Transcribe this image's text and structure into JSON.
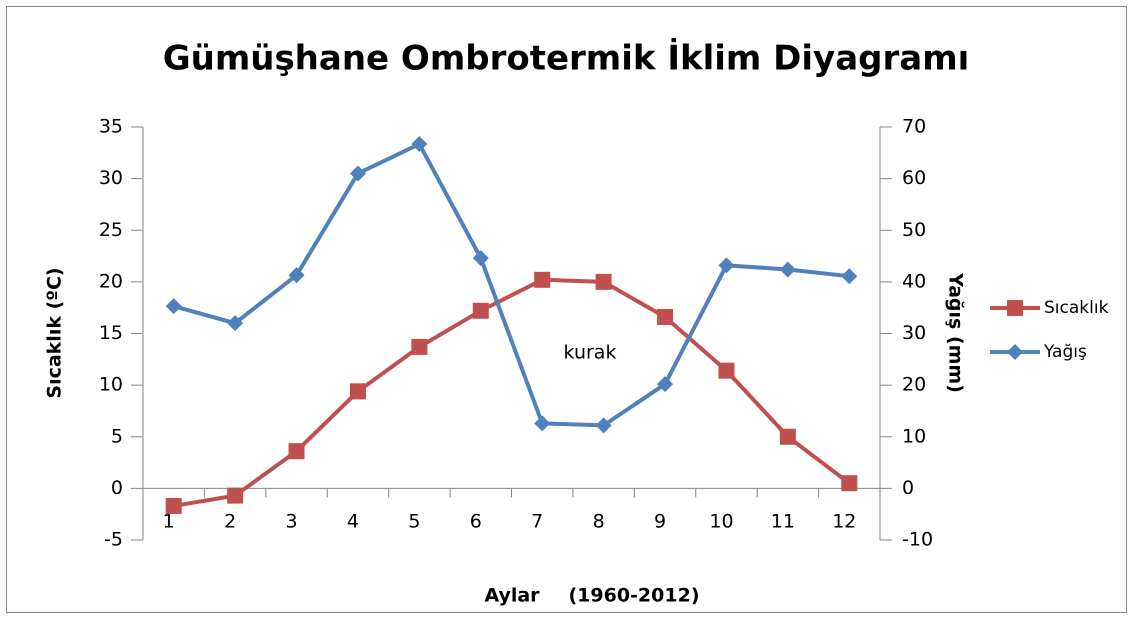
{
  "chart_data": {
    "type": "line",
    "title": "Gümüşhane Ombrotermik İklim Diyagramı",
    "xlabel": "Aylar",
    "ylabel": "Sıcaklık (ºC)",
    "y2label": "Yağış (mm)",
    "annotations": [
      "kurak",
      "(1960-2012)"
    ],
    "categories": [
      "1",
      "2",
      "3",
      "4",
      "5",
      "6",
      "7",
      "8",
      "9",
      "10",
      "11",
      "12"
    ],
    "series": [
      {
        "name": "Sıcaklık",
        "color": "#c0504d",
        "marker": "square",
        "values": [
          -1.7,
          -0.7,
          3.6,
          9.4,
          13.7,
          17.2,
          20.2,
          20.0,
          16.6,
          11.4,
          5.0,
          0.5
        ]
      },
      {
        "name": "Yağış",
        "color": "#4f81bd",
        "marker": "diamond",
        "axis": "y2",
        "values": [
          35.3,
          32.0,
          41.3,
          61.0,
          66.7,
          44.6,
          12.6,
          12.2,
          20.2,
          43.2,
          42.4,
          41.1
        ]
      }
    ],
    "ylim": [
      -5,
      35
    ],
    "yticks": [
      -5,
      0,
      5,
      10,
      15,
      20,
      25,
      30,
      35
    ],
    "y2lim": [
      -10,
      70
    ],
    "y2ticks": [
      -10,
      0,
      10,
      20,
      30,
      40,
      50,
      60,
      70
    ],
    "grid": false,
    "legend": "right"
  }
}
